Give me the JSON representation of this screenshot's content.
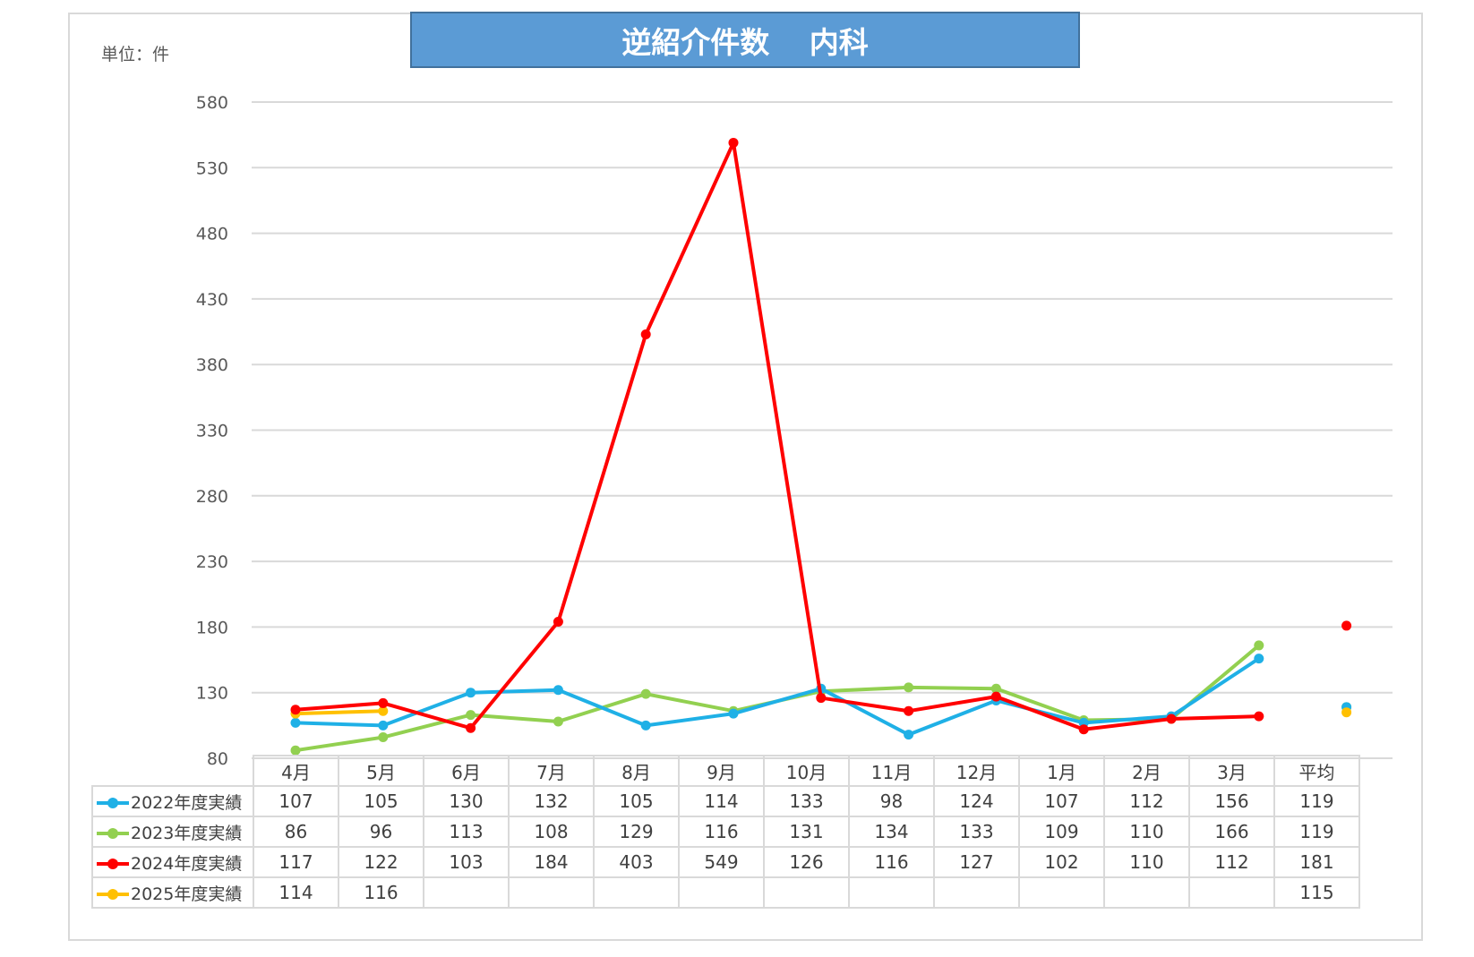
{
  "title": "逆紹介件数　 内科",
  "unit_label": "単位：件",
  "colors": {
    "title_bg": "#5b9bd5",
    "s2022": "#1fb0e6",
    "s2023": "#92d050",
    "s2024": "#ff0000",
    "s2025": "#ffc000"
  },
  "chart_data": {
    "type": "line",
    "title": "逆紹介件数　 内科",
    "ylabel": "単位：件",
    "xlabel": "",
    "ylim": [
      80,
      580
    ],
    "yticks": [
      580,
      530,
      480,
      430,
      380,
      330,
      280,
      230,
      180,
      130,
      80
    ],
    "categories": [
      "4月",
      "5月",
      "6月",
      "7月",
      "8月",
      "9月",
      "10月",
      "11月",
      "12月",
      "1月",
      "2月",
      "3月",
      "平均"
    ],
    "grid": true,
    "legend": "table-left",
    "series": [
      {
        "name": "2022年度実績",
        "color": "#1fb0e6",
        "values": [
          107,
          105,
          130,
          132,
          105,
          114,
          133,
          98,
          124,
          107,
          112,
          156,
          119
        ]
      },
      {
        "name": "2023年度実績",
        "color": "#92d050",
        "values": [
          86,
          96,
          113,
          108,
          129,
          116,
          131,
          134,
          133,
          109,
          110,
          166,
          119
        ]
      },
      {
        "name": "2024年度実績",
        "color": "#ff0000",
        "values": [
          117,
          122,
          103,
          184,
          403,
          549,
          126,
          116,
          127,
          102,
          110,
          112,
          181
        ]
      },
      {
        "name": "2025年度実績",
        "color": "#ffc000",
        "values": [
          114,
          116,
          null,
          null,
          null,
          null,
          null,
          null,
          null,
          null,
          null,
          null,
          115
        ]
      }
    ]
  }
}
